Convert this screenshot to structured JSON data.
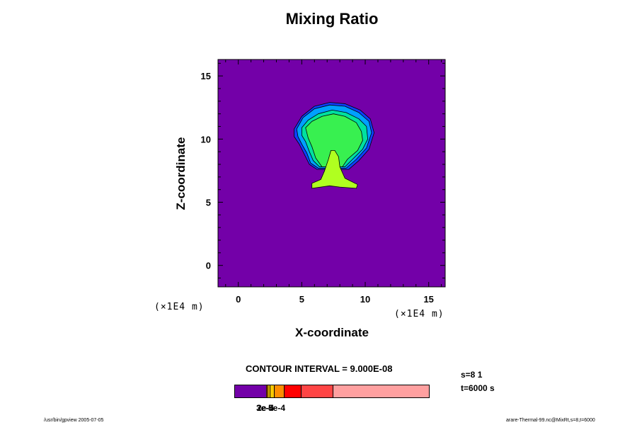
{
  "chart_data": {
    "type": "heatmap",
    "title": "Mixing Ratio",
    "xlabel": "X-coordinate",
    "ylabel": "Z-coordinate",
    "x_unit": "(×1E4 m)",
    "y_unit": "(×1E4 m)",
    "xlim": [
      -1.6,
      16.3
    ],
    "ylim": [
      -1.7,
      16.3
    ],
    "x_ticks": [
      0,
      5,
      10,
      15
    ],
    "y_ticks": [
      0,
      5,
      10,
      15
    ],
    "x_tick_labels": [
      "0",
      "5",
      "10",
      "15"
    ],
    "y_tick_labels": [
      "0",
      "5",
      "10",
      "15"
    ],
    "background_color": "#7300a8",
    "contour_fills": [
      {
        "level": 1,
        "color": "#1040ff",
        "outline": [
          [
            4.4,
            10.8
          ],
          [
            5.0,
            11.8
          ],
          [
            6.0,
            12.6
          ],
          [
            7.2,
            12.9
          ],
          [
            8.4,
            12.8
          ],
          [
            9.6,
            12.3
          ],
          [
            10.4,
            11.6
          ],
          [
            10.7,
            10.5
          ],
          [
            10.3,
            9.2
          ],
          [
            9.5,
            8.3
          ],
          [
            8.7,
            7.6
          ],
          [
            6.2,
            7.6
          ],
          [
            5.6,
            8.0
          ],
          [
            5.2,
            8.8
          ],
          [
            4.8,
            9.6
          ],
          [
            4.4,
            10.2
          ]
        ]
      },
      {
        "level": 2,
        "color": "#00a0ff",
        "outline": [
          [
            4.6,
            10.8
          ],
          [
            5.1,
            11.7
          ],
          [
            6.0,
            12.4
          ],
          [
            7.2,
            12.7
          ],
          [
            8.4,
            12.6
          ],
          [
            9.5,
            12.1
          ],
          [
            10.3,
            11.4
          ],
          [
            10.5,
            10.5
          ],
          [
            10.1,
            9.3
          ],
          [
            9.3,
            8.4
          ],
          [
            8.5,
            7.7
          ],
          [
            6.3,
            7.7
          ],
          [
            5.7,
            8.1
          ],
          [
            5.4,
            8.9
          ],
          [
            5.0,
            9.6
          ],
          [
            4.7,
            10.2
          ]
        ]
      },
      {
        "level": 3,
        "color": "#00e0a0",
        "outline": [
          [
            5.0,
            10.9
          ],
          [
            5.5,
            11.5
          ],
          [
            6.3,
            12.0
          ],
          [
            7.4,
            12.3
          ],
          [
            8.5,
            12.1
          ],
          [
            9.5,
            11.6
          ],
          [
            10.1,
            11.0
          ],
          [
            10.2,
            10.0
          ],
          [
            9.8,
            9.2
          ],
          [
            9.0,
            8.4
          ],
          [
            8.4,
            7.8
          ],
          [
            6.4,
            7.8
          ],
          [
            5.9,
            8.3
          ],
          [
            5.6,
            9.0
          ],
          [
            5.3,
            9.8
          ],
          [
            5.0,
            10.3
          ]
        ]
      },
      {
        "level": 4,
        "color": "#38f050",
        "outline": [
          [
            5.3,
            10.9
          ],
          [
            5.8,
            11.4
          ],
          [
            6.6,
            11.8
          ],
          [
            7.5,
            12.0
          ],
          [
            8.4,
            11.8
          ],
          [
            9.3,
            11.3
          ],
          [
            9.7,
            10.6
          ],
          [
            9.8,
            9.9
          ],
          [
            9.4,
            9.1
          ],
          [
            8.6,
            8.4
          ],
          [
            8.2,
            7.8
          ],
          [
            6.6,
            7.8
          ],
          [
            6.1,
            8.5
          ],
          [
            5.8,
            9.4
          ],
          [
            5.5,
            10.1
          ]
        ]
      },
      {
        "level": 5,
        "color": "#b0ff20",
        "outline": [
          [
            5.8,
            6.1
          ],
          [
            7.2,
            6.3
          ],
          [
            8.0,
            6.2
          ],
          [
            9.3,
            6.1
          ],
          [
            9.4,
            6.4
          ],
          [
            8.4,
            6.9
          ],
          [
            8.0,
            7.8
          ],
          [
            7.9,
            8.6
          ],
          [
            7.6,
            9.1
          ],
          [
            7.3,
            9.1
          ],
          [
            7.1,
            8.4
          ],
          [
            6.8,
            7.5
          ],
          [
            6.5,
            6.8
          ],
          [
            5.8,
            6.5
          ]
        ]
      }
    ],
    "colorbar": {
      "segments": [
        {
          "color": "#7300a8",
          "fraction": 0.165
        },
        {
          "color": "#f08000",
          "fraction": 0.005
        },
        {
          "color": "#ffd000",
          "fraction": 0.005
        },
        {
          "color": "#ffc800",
          "fraction": 0.02
        },
        {
          "color": "#ff8c00",
          "fraction": 0.05
        },
        {
          "color": "#ff0000",
          "fraction": 0.085
        },
        {
          "color": "#ff4545",
          "fraction": 0.165
        },
        {
          "color": "#ffa0a0",
          "fraction": 0.505
        }
      ],
      "label_overlap": "2e-4",
      "label_overlap2": "3e-5",
      "label_main": "5e-4"
    },
    "contour_interval": "CONTOUR INTERVAL = 9.000E-08",
    "slice_info": "s=8 1",
    "time_info": "t=6000 s",
    "footer_left": "/usr/bin/gpview 2005-07-05",
    "footer_right": "arare-Thermal-99.nc@MixRt,s=8,t=6000"
  }
}
